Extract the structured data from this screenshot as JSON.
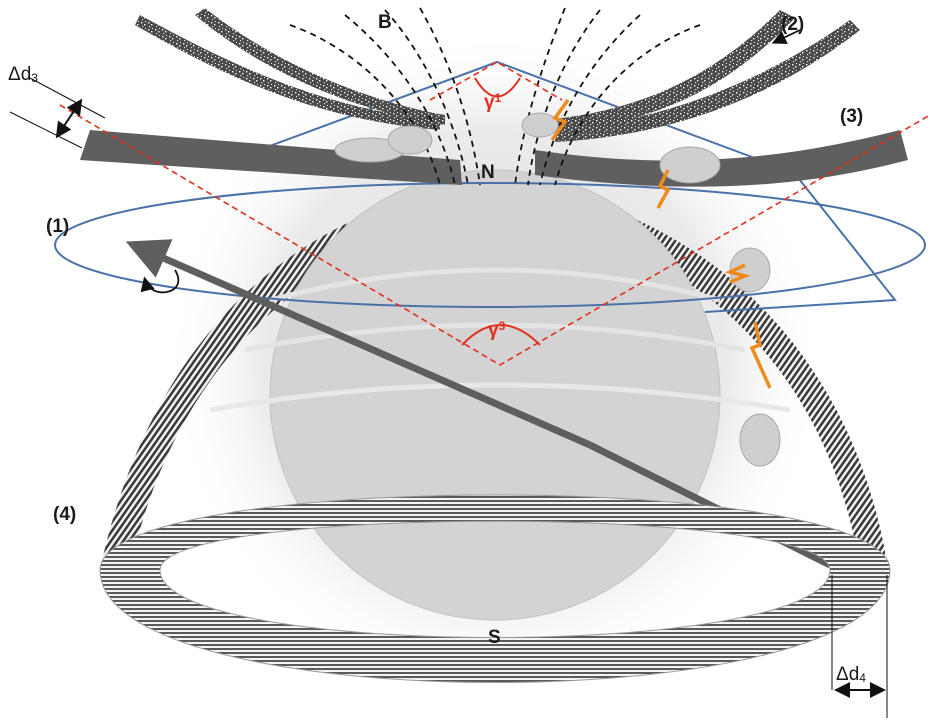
{
  "labels": {
    "B": "B",
    "N": "N",
    "S": "S",
    "region_1": "(1)",
    "region_2": "(2)",
    "region_3": "(3)",
    "region_4": "(4)",
    "gamma_1": "γ",
    "gamma_1_sub": "1",
    "gamma_3": "γ",
    "gamma_3_sub": "3",
    "delta_d3": "Δd",
    "delta_d3_sub": "3",
    "delta_d4": "Δd",
    "delta_d4_sub": "4"
  },
  "colors": {
    "star": "#d3d3d3",
    "cone_line": "#4a72a8",
    "axis_dash": "#e0301e",
    "sheet": "#666666",
    "spark": "#f08a1c",
    "ring": "#555555"
  }
}
